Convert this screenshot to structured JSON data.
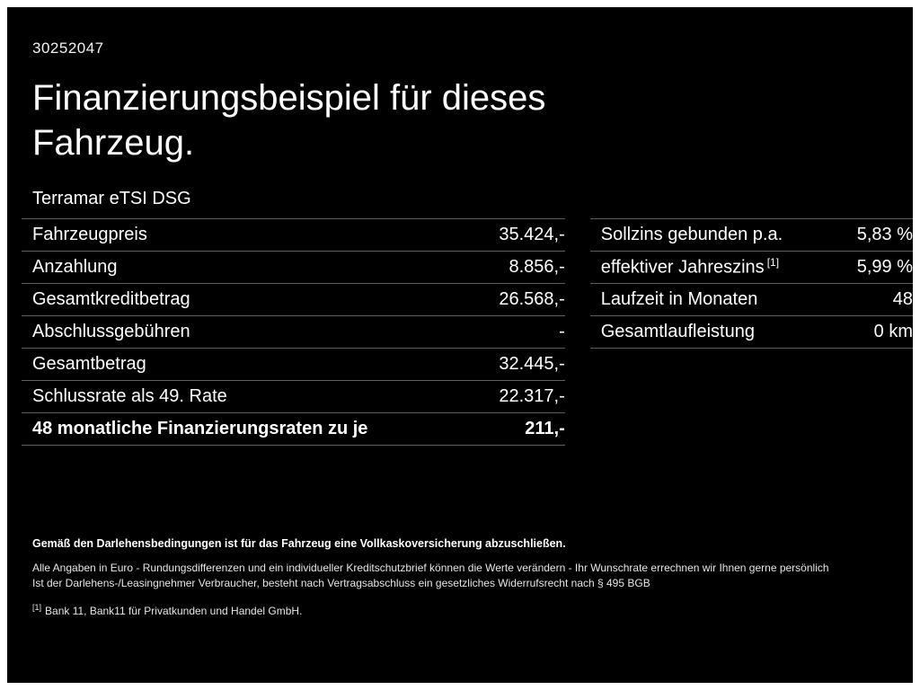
{
  "page": {
    "id_number": "30252047",
    "title_line1": "Finanzierungsbeispiel für dieses",
    "title_line2": "Fahrzeug.",
    "subtitle": "Terramar eTSI DSG"
  },
  "left_table": {
    "rows": [
      {
        "label": "Fahrzeugpreis",
        "value": "35.424,-"
      },
      {
        "label": "Anzahlung",
        "value": "8.856,-"
      },
      {
        "label": "Gesamtkreditbetrag",
        "value": "26.568,-"
      },
      {
        "label": "Abschlussgebühren",
        "value": "-"
      },
      {
        "label": "Gesamtbetrag",
        "value": "32.445,-"
      },
      {
        "label": "Schlussrate als 49. Rate",
        "value": "22.317,-"
      },
      {
        "label": "48 monatliche Finanzierungsraten zu je",
        "value": "211,-"
      }
    ]
  },
  "right_table": {
    "rows": [
      {
        "label": "Sollzins gebunden p.a.",
        "sup": "",
        "value": "5,83 %"
      },
      {
        "label": "effektiver Jahreszins",
        "sup": "[1]",
        "value": "5,99 %"
      },
      {
        "label": "Laufzeit in Monaten",
        "sup": "",
        "value": "48"
      },
      {
        "label": "Gesamtlaufleistung",
        "sup": "",
        "value": "0 km"
      }
    ]
  },
  "footer": {
    "line1": "Gemäß den Darlehensbedingungen ist für das Fahrzeug eine Vollkaskoversicherung abzuschließen.",
    "line2": "Alle Angaben in Euro - Rundungsdifferenzen und ein individueller Kreditschutzbrief können die Werte verändern - Ihr Wunschrate errechnen wir Ihnen gerne persönlich",
    "line3": "Ist der Darlehens-/Leasingnehmer Verbraucher, besteht nach Vertragsabschluss ein gesetzliches Widerrufsrecht nach § 495 BGB",
    "footnote_marker": "[1]",
    "footnote_text": "Bank 11, Bank11 für Privatkunden und Handel GmbH."
  },
  "colors": {
    "background": "#000000",
    "text": "#ffffff",
    "separator": "#5f5f5f"
  }
}
